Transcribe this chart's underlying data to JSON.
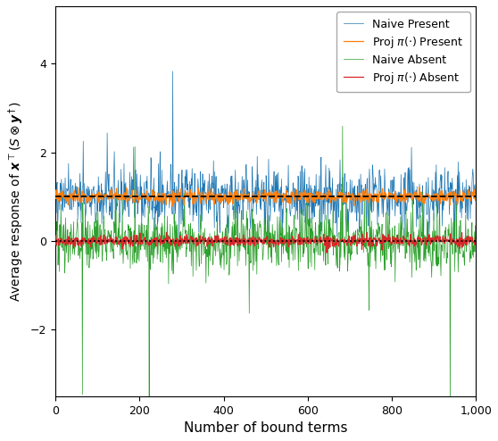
{
  "title": "",
  "xlabel": "Number of bound terms",
  "ylabel": "Average response of $\\boldsymbol{x}^\\top(S \\otimes \\boldsymbol{y}^\\dagger)$",
  "xlim": [
    0,
    1000
  ],
  "ylim": [
    -3.5,
    5.3
  ],
  "yticks": [
    -2,
    0,
    2,
    4
  ],
  "xticks": [
    0,
    200,
    400,
    600,
    800,
    1000
  ],
  "hline_dashed_y": 1.0,
  "hline_dotted_y": 0.0,
  "n_points": 1000,
  "seed": 42,
  "colors": {
    "naive_present": "#1f77b4",
    "proj_present": "#ff7f0e",
    "naive_absent": "#2ca02c",
    "proj_absent": "#d62728"
  },
  "legend_labels": [
    "Naive Present",
    "Proj $\\pi(\\cdot)$ Present",
    "Naive Absent",
    "Proj $\\pi(\\cdot)$ Absent"
  ],
  "figsize": [
    5.58,
    4.94
  ],
  "dpi": 100,
  "naive_present_mean": 1.0,
  "naive_present_base_std": 0.35,
  "naive_absent_mean": 0.0,
  "naive_absent_base_std": 0.35,
  "proj_present_std": 0.07,
  "proj_absent_std": 0.06,
  "spike_prob": 0.012,
  "spike_scale": 2.5
}
